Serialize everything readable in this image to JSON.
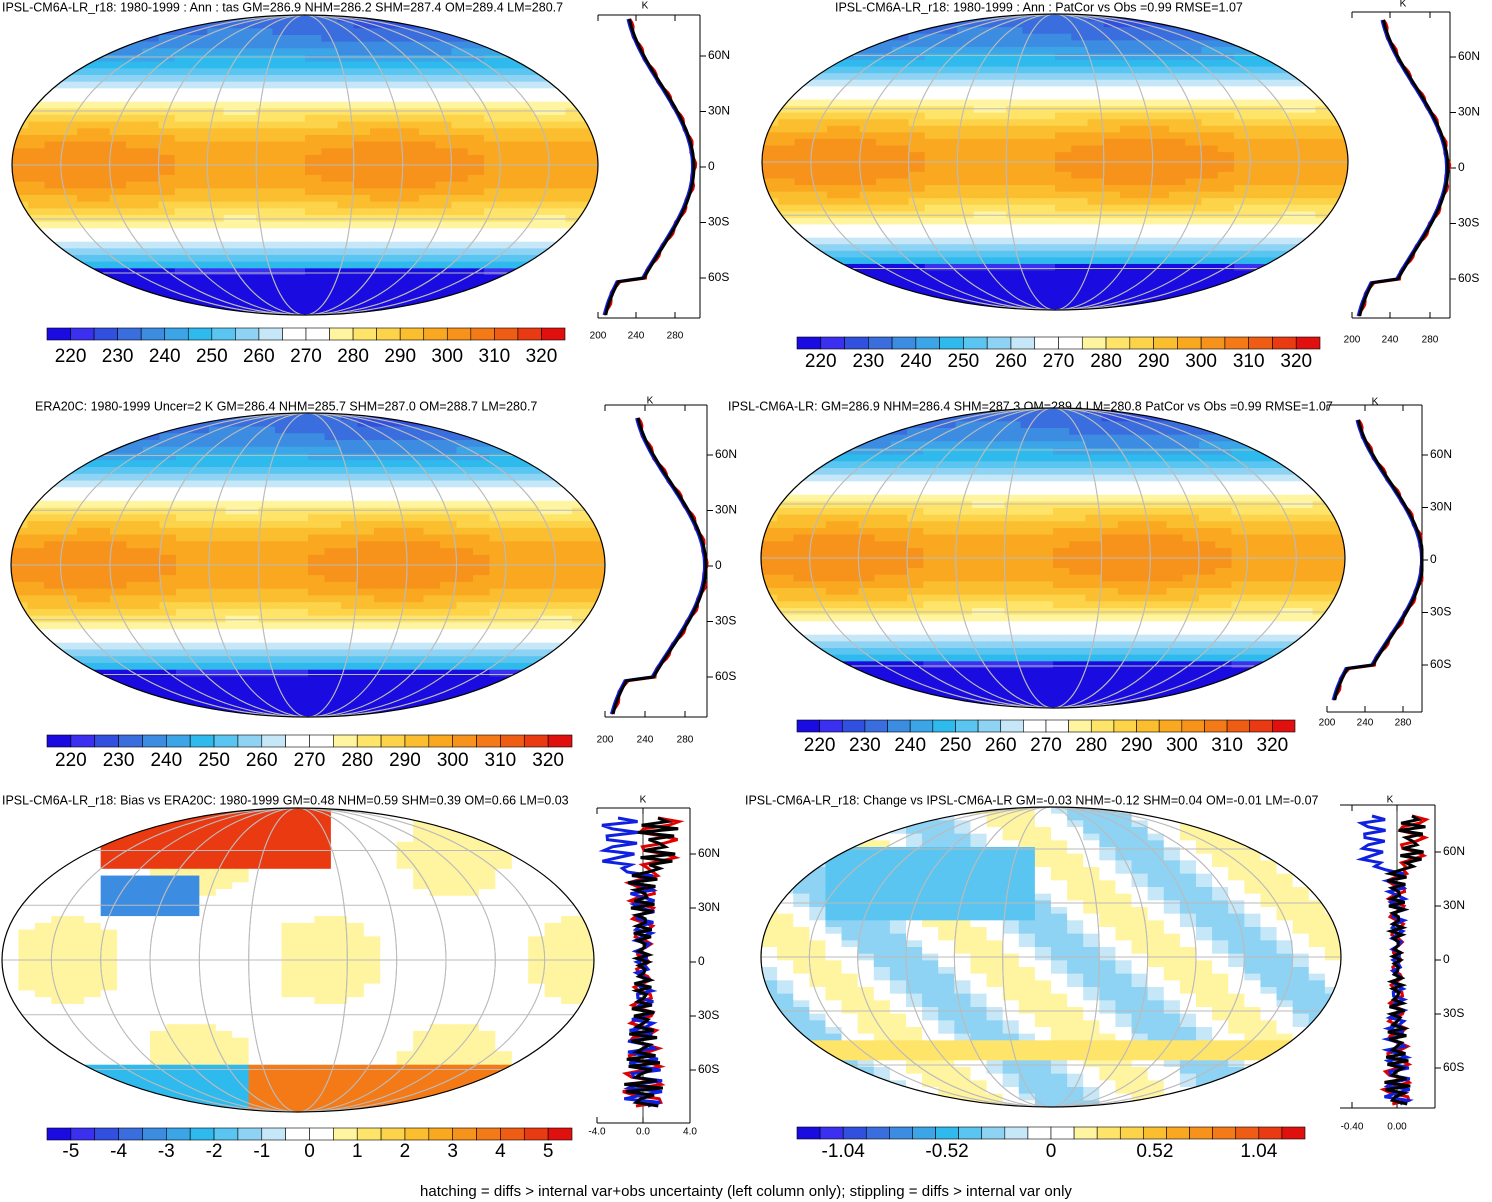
{
  "panels": [
    {
      "title": "IPSL-CM6A-LR_r18: 1980-1999 : Ann : tas GM=286.9 NHM=286.2 SHM=287.4 OM=289.4 LM=280.7",
      "colorbar": [
        220,
        230,
        240,
        250,
        260,
        270,
        280,
        290,
        300,
        310,
        320
      ],
      "profile": {
        "unit": "K",
        "lat": [
          "60N",
          "30N",
          "0",
          "30S",
          "60S"
        ],
        "x": [
          "200",
          "240",
          "280"
        ]
      }
    },
    {
      "title": "IPSL-CM6A-LR_r18: 1980-1999 : Ann : PatCor vs Obs =0.99 RMSE=1.07",
      "colorbar": [
        220,
        230,
        240,
        250,
        260,
        270,
        280,
        290,
        300,
        310,
        320
      ],
      "profile": {
        "unit": "K",
        "lat": [
          "60N",
          "30N",
          "0",
          "30S",
          "60S"
        ],
        "x": [
          "200",
          "240",
          "280"
        ]
      }
    },
    {
      "title": "ERA20C: 1980-1999 Uncer=2 K GM=286.4 NHM=285.7 SHM=287.0 OM=288.7 LM=280.7",
      "colorbar": [
        220,
        230,
        240,
        250,
        260,
        270,
        280,
        290,
        300,
        310,
        320
      ],
      "profile": {
        "unit": "K",
        "lat": [
          "60N",
          "30N",
          "0",
          "30S",
          "60S"
        ],
        "x": [
          "200",
          "240",
          "280"
        ]
      }
    },
    {
      "title": "IPSL-CM6A-LR: GM=286.9 NHM=286.4 SHM=287.3 OM=289.4 LM=280.8 PatCor vs Obs =0.99 RMSE=1.07",
      "colorbar": [
        220,
        230,
        240,
        250,
        260,
        270,
        280,
        290,
        300,
        310,
        320
      ],
      "profile": {
        "unit": "K",
        "lat": [
          "60N",
          "30N",
          "0",
          "30S",
          "60S"
        ],
        "x": [
          "200",
          "240",
          "280"
        ]
      }
    },
    {
      "title": "IPSL-CM6A-LR_r18: Bias vs ERA20C: 1980-1999 GM=0.48 NHM=0.59 SHM=0.39 OM=0.66 LM=0.03",
      "colorbar": [
        -5,
        -4,
        -3,
        -2,
        -1,
        0,
        1,
        2,
        3,
        4,
        5
      ],
      "profile": {
        "unit": "K",
        "lat": [
          "60N",
          "30N",
          "0",
          "30S",
          "60S"
        ],
        "x": [
          "-4.0",
          "0.0",
          "4.0"
        ]
      }
    },
    {
      "title": "IPSL-CM6A-LR_r18: Change vs IPSL-CM6A-LR GM=-0.03 NHM=-0.12 SHM=0.04 OM=-0.01 LM=-0.07",
      "colorbar": [
        -1.04,
        -0.52,
        0,
        0.52,
        1.04
      ],
      "profile": {
        "unit": "K",
        "lat": [
          "60N",
          "30N",
          "0",
          "30S",
          "60S"
        ],
        "x": [
          "-0.40",
          "0.00"
        ]
      }
    }
  ],
  "footer": "hatching = diffs > internal var+obs uncertainty (left column only); stippling = diffs > internal var only"
}
